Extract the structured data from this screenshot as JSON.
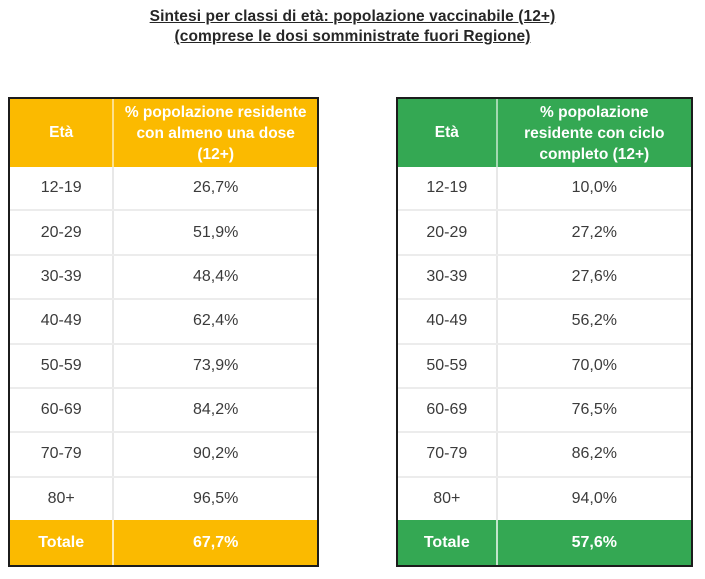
{
  "title": {
    "line1": "Sintesi per classi di età: popolazione vaccinabile (12+)",
    "line2": "(comprese le dosi somministrate fuori Regione)"
  },
  "tables": [
    {
      "name": "almeno-una-dose",
      "accent_color": "#FBBA00",
      "header": {
        "age_label": "Età",
        "value_label": "% popolazione residente con almeno una dose (12+)"
      },
      "rows": [
        [
          "12-19",
          "26,7%"
        ],
        [
          "20-29",
          "51,9%"
        ],
        [
          "30-39",
          "48,4%"
        ],
        [
          "40-49",
          "62,4%"
        ],
        [
          "50-59",
          "73,9%"
        ],
        [
          "60-69",
          "84,2%"
        ],
        [
          "70-79",
          "90,2%"
        ],
        [
          "80+",
          "96,5%"
        ]
      ],
      "total": {
        "label": "Totale",
        "value": "67,7%"
      }
    },
    {
      "name": "ciclo-completo",
      "accent_color": "#34A853",
      "header": {
        "age_label": "Età",
        "value_label": "% popolazione residente con ciclo completo (12+)"
      },
      "rows": [
        [
          "12-19",
          "10,0%"
        ],
        [
          "20-29",
          "27,2%"
        ],
        [
          "30-39",
          "27,6%"
        ],
        [
          "40-49",
          "56,2%"
        ],
        [
          "50-59",
          "70,0%"
        ],
        [
          "60-69",
          "76,5%"
        ],
        [
          "70-79",
          "86,2%"
        ],
        [
          "80+",
          "94,0%"
        ]
      ],
      "total": {
        "label": "Totale",
        "value": "57,6%"
      }
    }
  ],
  "chart_data": [
    {
      "type": "table",
      "title": "% popolazione residente con almeno una dose (12+)",
      "categories": [
        "12-19",
        "20-29",
        "30-39",
        "40-49",
        "50-59",
        "60-69",
        "70-79",
        "80+"
      ],
      "values": [
        26.7,
        51.9,
        48.4,
        62.4,
        73.9,
        84.2,
        90.2,
        96.5
      ],
      "total": 67.7
    },
    {
      "type": "table",
      "title": "% popolazione residente con ciclo completo (12+)",
      "categories": [
        "12-19",
        "20-29",
        "30-39",
        "40-49",
        "50-59",
        "60-69",
        "70-79",
        "80+"
      ],
      "values": [
        10.0,
        27.2,
        27.6,
        56.2,
        70.0,
        76.5,
        86.2,
        94.0
      ],
      "total": 57.6
    }
  ]
}
